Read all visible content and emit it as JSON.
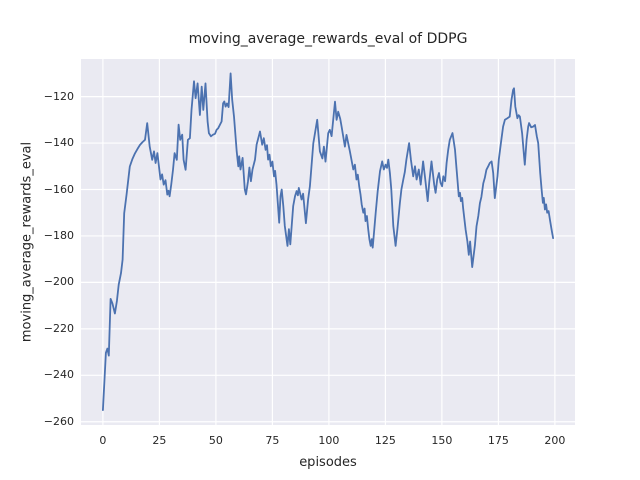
{
  "chart_data": {
    "type": "line",
    "title": "moving_average_rewards_eval of DDPG",
    "xlabel": "episodes",
    "ylabel": "moving_average_rewards_eval",
    "x_ticks": [
      0,
      25,
      50,
      75,
      100,
      125,
      150,
      175,
      200
    ],
    "y_ticks": [
      -260,
      -240,
      -220,
      -200,
      -180,
      -160,
      -140,
      -120
    ],
    "xlim": [
      -9.7,
      208.9
    ],
    "ylim": [
      -261.4,
      -103.8
    ],
    "grid": true,
    "legend": "none",
    "colors": {
      "line": "#4C72B0",
      "plot_background": "#EAEAF2",
      "grid": "#FFFFFF",
      "text": "#262626",
      "figure_background": "#FFFFFF"
    },
    "series": [
      {
        "name": "moving_average_rewards_eval",
        "x": [
          0,
          1.3,
          2,
          2.6,
          3.4,
          4.2,
          5.3,
          6.2,
          7,
          8,
          8.7,
          9.4,
          10.5,
          11.9,
          13,
          14.2,
          15.3,
          16.4,
          17.5,
          18.6,
          19.6,
          20.7,
          21.8,
          22.6,
          23.3,
          24.1,
          25.5,
          26.2,
          26.9,
          27.7,
          28.5,
          29,
          29.5,
          30.2,
          31,
          31.7,
          32.7,
          33.5,
          34.2,
          35.1,
          35.7,
          36.6,
          37.6,
          38.5,
          39.2,
          40.3,
          41,
          41.9,
          42.9,
          43.7,
          44.4,
          45.4,
          46.3,
          46.9,
          47.8,
          48.7,
          49.6,
          50.3,
          51,
          52.5,
          53.2,
          53.7,
          54.3,
          54.9,
          55.6,
          56.5,
          57.2,
          58,
          59.2,
          59.9,
          60.3,
          60.9,
          61.8,
          62.8,
          63.3,
          64.2,
          64.8,
          65.5,
          66.2,
          67.3,
          68,
          69.5,
          70.5,
          71.2,
          72,
          72.6,
          73.1,
          73.7,
          74.3,
          75,
          75.7,
          76.2,
          76.8,
          78,
          78.6,
          79.1,
          79.8,
          80.5,
          81.7,
          82.3,
          82.9,
          84.2,
          85,
          85.7,
          86.3,
          86.7,
          87.9,
          88.6,
          89.8,
          90.8,
          91.6,
          93.1,
          94.8,
          96,
          97.1,
          97.8,
          98.5,
          99.7,
          100.4,
          101.2,
          102.7,
          103.4,
          104.1,
          105,
          105.6,
          107.1,
          107.8,
          109.3,
          110.8,
          111.5,
          112.2,
          112.8,
          113.4,
          114,
          114.5,
          115.2,
          115.8,
          116.2,
          116.8,
          117.4,
          117.9,
          118.5,
          119,
          119.4,
          120.1,
          120.7,
          121.6,
          122.6,
          123.6,
          124.3,
          125.1,
          125.7,
          126.3,
          127,
          127.6,
          128.5,
          129.5,
          130.3,
          131.4,
          132.1,
          132.9,
          133.6,
          134.3,
          135.5,
          136.3,
          137.3,
          138.1,
          138.8,
          139.8,
          140.6,
          141.7,
          142.5,
          143.7,
          144.4,
          145.4,
          146.6,
          147.2,
          147.9,
          148.7,
          149.4,
          150.1,
          150.6,
          151.4,
          152.1,
          152.8,
          153.5,
          154.7,
          155.8,
          156.5,
          157,
          157.5,
          158,
          158.4,
          159,
          159.4,
          160.5,
          161.3,
          161.9,
          162.5,
          163.4,
          164.6,
          165.3,
          166.1,
          166.8,
          167.5,
          168.3,
          169,
          169.7,
          170.5,
          171.2,
          172,
          172.7,
          173.4,
          174.6,
          175.2,
          176.1,
          177.1,
          177.9,
          179,
          180,
          180.8,
          181.5,
          181.9,
          182.5,
          183.4,
          184,
          184.5,
          185.5,
          186.4,
          186.7,
          187.5,
          188.2,
          188.6,
          189.5,
          190.4,
          191.2,
          192,
          192.6,
          193.5,
          194.1,
          194.7,
          195.1,
          195.6,
          196.1,
          196.6,
          197.2,
          197.8,
          198.5,
          199.2
        ],
        "y": [
          -255,
          -230.3,
          -228.5,
          -231.5,
          -207.1,
          -209,
          -213.4,
          -208,
          -201,
          -196,
          -190.2,
          -170.2,
          -162,
          -150.1,
          -147,
          -144.4,
          -142.5,
          -140.8,
          -139.6,
          -138.6,
          -131.4,
          -141.5,
          -147.2,
          -143.6,
          -148.6,
          -144.3,
          -155.7,
          -153.5,
          -157.9,
          -156,
          -162.2,
          -160.5,
          -162.9,
          -158,
          -151.5,
          -144.3,
          -147.2,
          -132.1,
          -138.6,
          -136.4,
          -147.2,
          -151.5,
          -138.6,
          -137.9,
          -125.7,
          -113.4,
          -120.7,
          -114.3,
          -127.9,
          -115.7,
          -125.7,
          -114.3,
          -130.7,
          -135.7,
          -137.1,
          -136.4,
          -136,
          -134.3,
          -133.6,
          -130.7,
          -122.9,
          -122.1,
          -124.3,
          -122.9,
          -124.5,
          -110,
          -121.4,
          -128.6,
          -143.6,
          -150,
          -145.7,
          -151.4,
          -146.4,
          -160,
          -162.1,
          -156.4,
          -150.5,
          -156.4,
          -151.4,
          -147.1,
          -140.7,
          -135,
          -140.7,
          -137.9,
          -142.9,
          -140.9,
          -147.1,
          -145,
          -150,
          -148,
          -154.3,
          -152,
          -157.9,
          -174.3,
          -162.9,
          -160,
          -167.1,
          -175.7,
          -184.3,
          -177.1,
          -183.6,
          -167.1,
          -162.9,
          -160.7,
          -162.5,
          -159.3,
          -164.3,
          -161.8,
          -174.5,
          -164.3,
          -158.6,
          -140.1,
          -130,
          -143.6,
          -146.6,
          -141.5,
          -148,
          -135.8,
          -134.3,
          -137,
          -122.2,
          -130,
          -126.5,
          -129.5,
          -132.9,
          -141.5,
          -136.5,
          -143.6,
          -151.4,
          -149.3,
          -155.7,
          -153.6,
          -158.6,
          -162.1,
          -166.4,
          -170,
          -168.2,
          -173.6,
          -171.4,
          -177.1,
          -181.4,
          -184.3,
          -181.4,
          -185,
          -177.1,
          -170,
          -160.7,
          -152.1,
          -147.9,
          -151.4,
          -149.3,
          -150.7,
          -147.1,
          -152.9,
          -160,
          -175.7,
          -184.3,
          -177.1,
          -165.7,
          -160,
          -155.7,
          -152.5,
          -147.1,
          -140,
          -147.1,
          -154.3,
          -150,
          -155.7,
          -151.4,
          -157.9,
          -147.9,
          -154.3,
          -165,
          -157.1,
          -147.9,
          -157.9,
          -161.4,
          -155.7,
          -152.9,
          -157.1,
          -158.6,
          -154.3,
          -156.4,
          -148.6,
          -142.9,
          -138.6,
          -135.7,
          -142.9,
          -151.4,
          -157.1,
          -162.9,
          -161.4,
          -165,
          -163.6,
          -167.9,
          -177.2,
          -182.4,
          -188.1,
          -182.4,
          -193.4,
          -184,
          -175.9,
          -171.4,
          -165.9,
          -163.2,
          -157.3,
          -155,
          -151.5,
          -150,
          -148.6,
          -147.9,
          -152.9,
          -163.7,
          -154.3,
          -147.1,
          -140,
          -132.9,
          -130,
          -129.3,
          -128.6,
          -121.4,
          -117.1,
          -116.4,
          -124.3,
          -129.3,
          -128,
          -128.6,
          -135.7,
          -146.4,
          -149.3,
          -138.6,
          -132.9,
          -131.4,
          -133.2,
          -132.9,
          -132.2,
          -137.1,
          -140,
          -152.9,
          -160,
          -165.7,
          -163.6,
          -168.6,
          -166.4,
          -170,
          -169.3,
          -172.9,
          -177.1,
          -180.9
        ]
      }
    ]
  }
}
